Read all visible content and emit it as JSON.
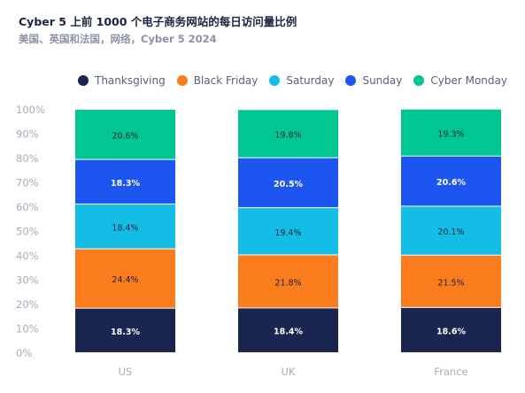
{
  "title": "Cyber 5 上前 1000 个电子商务网站的每日访问量比例",
  "subtitle": "美国、英国和法国，网络，Cyber 5 2024",
  "chart_data": {
    "type": "bar",
    "stacked": true,
    "categories": [
      "US",
      "UK",
      "France"
    ],
    "series": [
      {
        "name": "Thanksgiving",
        "color": "#1a2650",
        "values": [
          18.3,
          18.4,
          18.6
        ],
        "labels": [
          "18.3%",
          "18.4%",
          "18.6%"
        ]
      },
      {
        "name": "Black Friday",
        "color": "#fa7c1d",
        "values": [
          24.4,
          21.8,
          21.5
        ],
        "labels": [
          "24.4%",
          "21.8%",
          "21.5%"
        ]
      },
      {
        "name": "Saturday",
        "color": "#14bde6",
        "values": [
          18.4,
          19.4,
          20.1
        ],
        "labels": [
          "18.4%",
          "19.4%",
          "20.1%"
        ]
      },
      {
        "name": "Sunday",
        "color": "#1d55f1",
        "values": [
          18.3,
          20.5,
          20.6
        ],
        "labels": [
          "18.3%",
          "20.5%",
          "20.6%"
        ]
      },
      {
        "name": "Cyber Monday",
        "color": "#03c793",
        "values": [
          20.6,
          19.8,
          19.3
        ],
        "labels": [
          "20.6%",
          "19.8%",
          "19.3%"
        ]
      }
    ],
    "ylim": [
      0,
      100
    ],
    "yticks": [
      "0%",
      "10%",
      "20%",
      "30%",
      "40%",
      "50%",
      "60%",
      "70%",
      "80%",
      "90%",
      "100%"
    ],
    "legend_position": "top",
    "grid": false
  }
}
